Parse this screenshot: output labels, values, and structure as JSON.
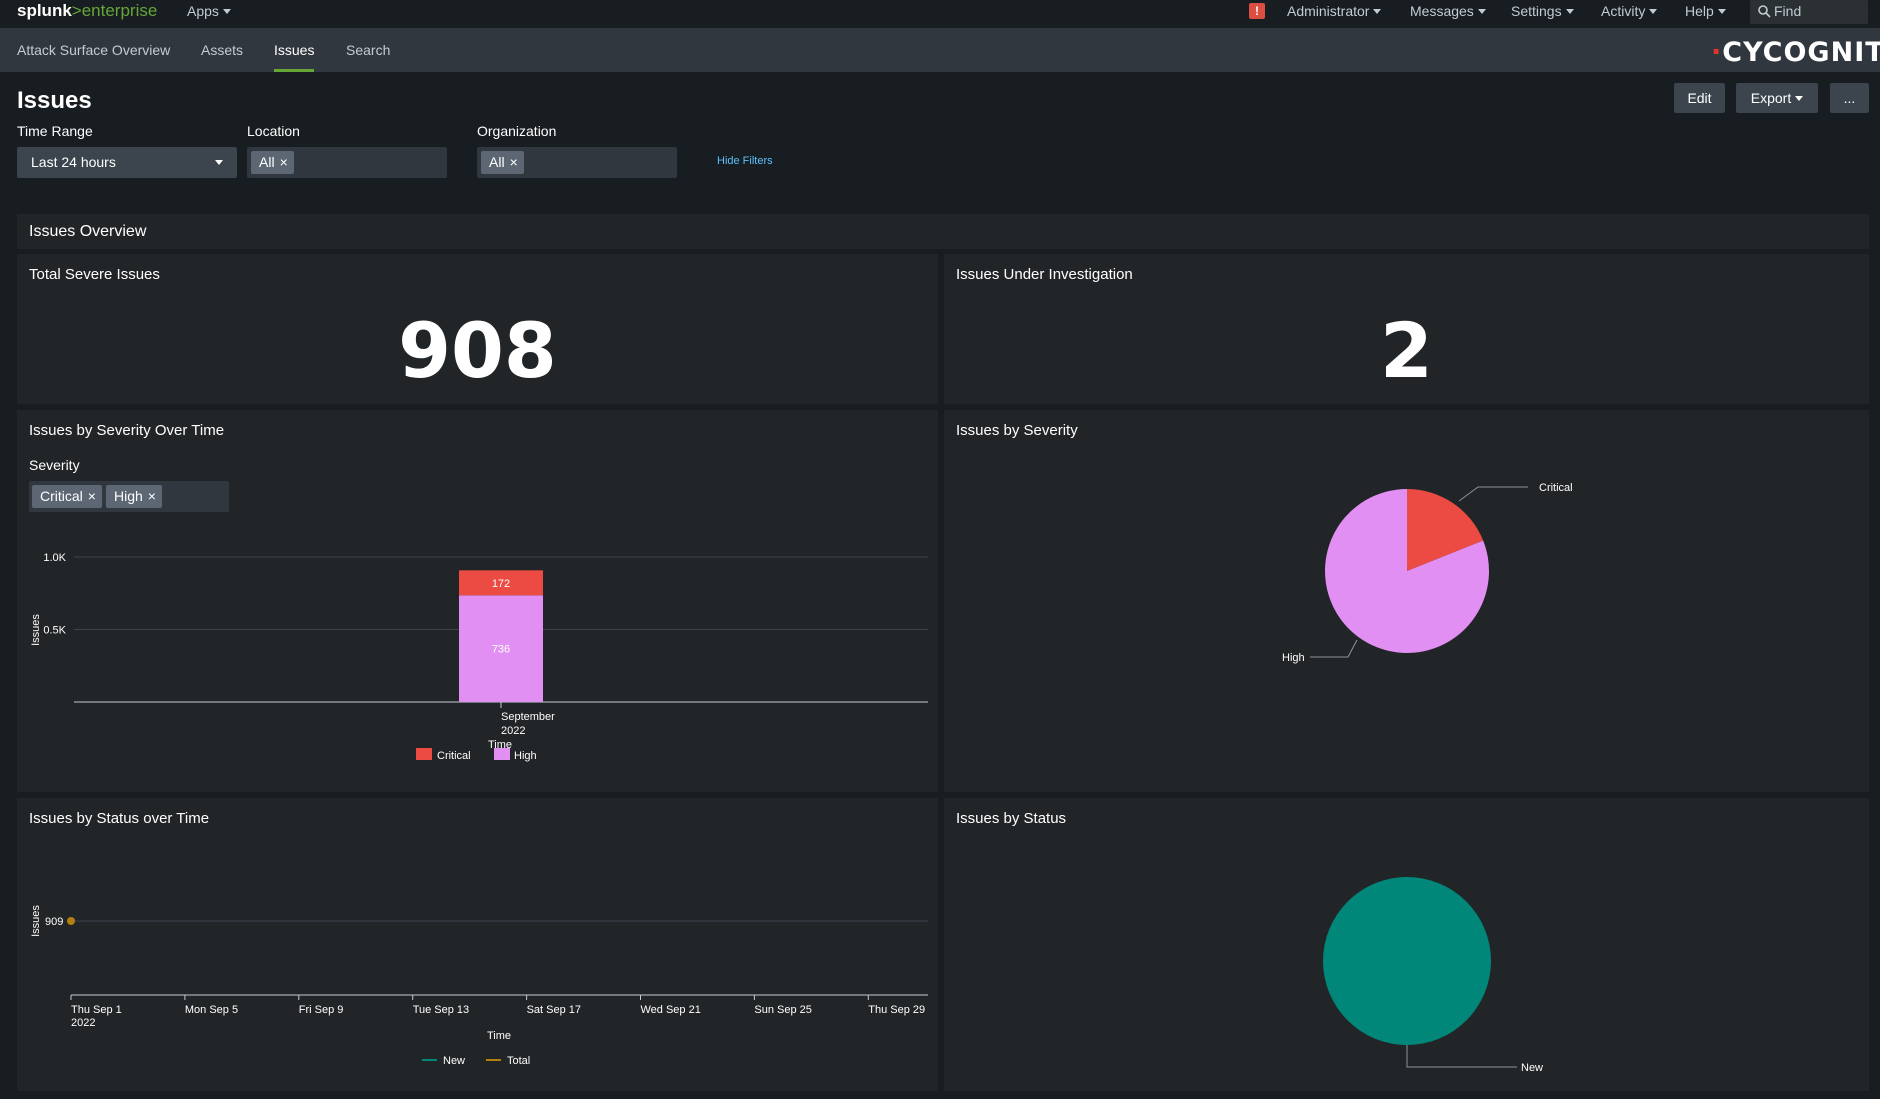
{
  "topbar": {
    "logo_splunk": "splunk",
    "logo_enterprise": ">enterprise",
    "apps": "Apps",
    "alert_glyph": "!",
    "administrator": "Administrator",
    "messages": "Messages",
    "settings": "Settings",
    "activity": "Activity",
    "help": "Help",
    "find": "Find"
  },
  "nav": {
    "items": [
      "Attack Surface Overview",
      "Assets",
      "Issues",
      "Search"
    ],
    "active": "Issues",
    "brand": "CYCOGNITO"
  },
  "page": {
    "title": "Issues",
    "edit": "Edit",
    "export": "Export",
    "more": "..."
  },
  "filters": {
    "time_range_label": "Time Range",
    "time_range_value": "Last 24 hours",
    "location_label": "Location",
    "location_chip": "All",
    "organization_label": "Organization",
    "organization_chip": "All",
    "hide_filters": "Hide Filters"
  },
  "overview": {
    "section_title": "Issues Overview",
    "total_severe_title": "Total Severe Issues",
    "total_severe_value": "908",
    "under_investigation_title": "Issues Under Investigation",
    "under_investigation_value": "2"
  },
  "severity_over_time": {
    "title": "Issues by Severity Over Time",
    "filter_label": "Severity",
    "chips": [
      "Critical",
      "High"
    ]
  },
  "severity_pie": {
    "title": "Issues by Severity"
  },
  "status_over_time": {
    "title": "Issues by Status over Time"
  },
  "status_pie": {
    "title": "Issues by Status"
  },
  "colors": {
    "critical": "#ec4b43",
    "high": "#e28ff3",
    "new": "#00877a",
    "total": "#b57e13",
    "accent_green": "#65a637",
    "link_blue": "#5cc0ff"
  },
  "chart_data": [
    {
      "type": "bar",
      "stacked": true,
      "categories": [
        "September 2022"
      ],
      "series": [
        {
          "name": "High",
          "values": [
            736
          ]
        },
        {
          "name": "Critical",
          "values": [
            172
          ]
        }
      ],
      "xlabel": "Time",
      "ylabel": "Issues",
      "ylim": [
        0,
        1000
      ],
      "yticks": [
        "0.5K",
        "1.0K"
      ],
      "legend": "bottom"
    },
    {
      "type": "pie",
      "labels": [
        "Critical",
        "High"
      ],
      "values": [
        172,
        736
      ]
    },
    {
      "type": "line",
      "x": [
        "Thu Sep 1 2022"
      ],
      "series": [
        {
          "name": "New",
          "values": [
            null
          ]
        },
        {
          "name": "Total",
          "values": [
            909
          ]
        }
      ],
      "point_label": "909",
      "xticks": [
        "Thu Sep 1",
        "Mon Sep 5",
        "Fri Sep 9",
        "Tue Sep 13",
        "Sat Sep 17",
        "Wed Sep 21",
        "Sun Sep 25",
        "Thu Sep 29"
      ],
      "xtick_year": "2022",
      "xlabel": "Time",
      "ylabel": "Issues",
      "legend": "bottom"
    },
    {
      "type": "pie",
      "labels": [
        "New"
      ],
      "values": [
        909
      ]
    }
  ]
}
